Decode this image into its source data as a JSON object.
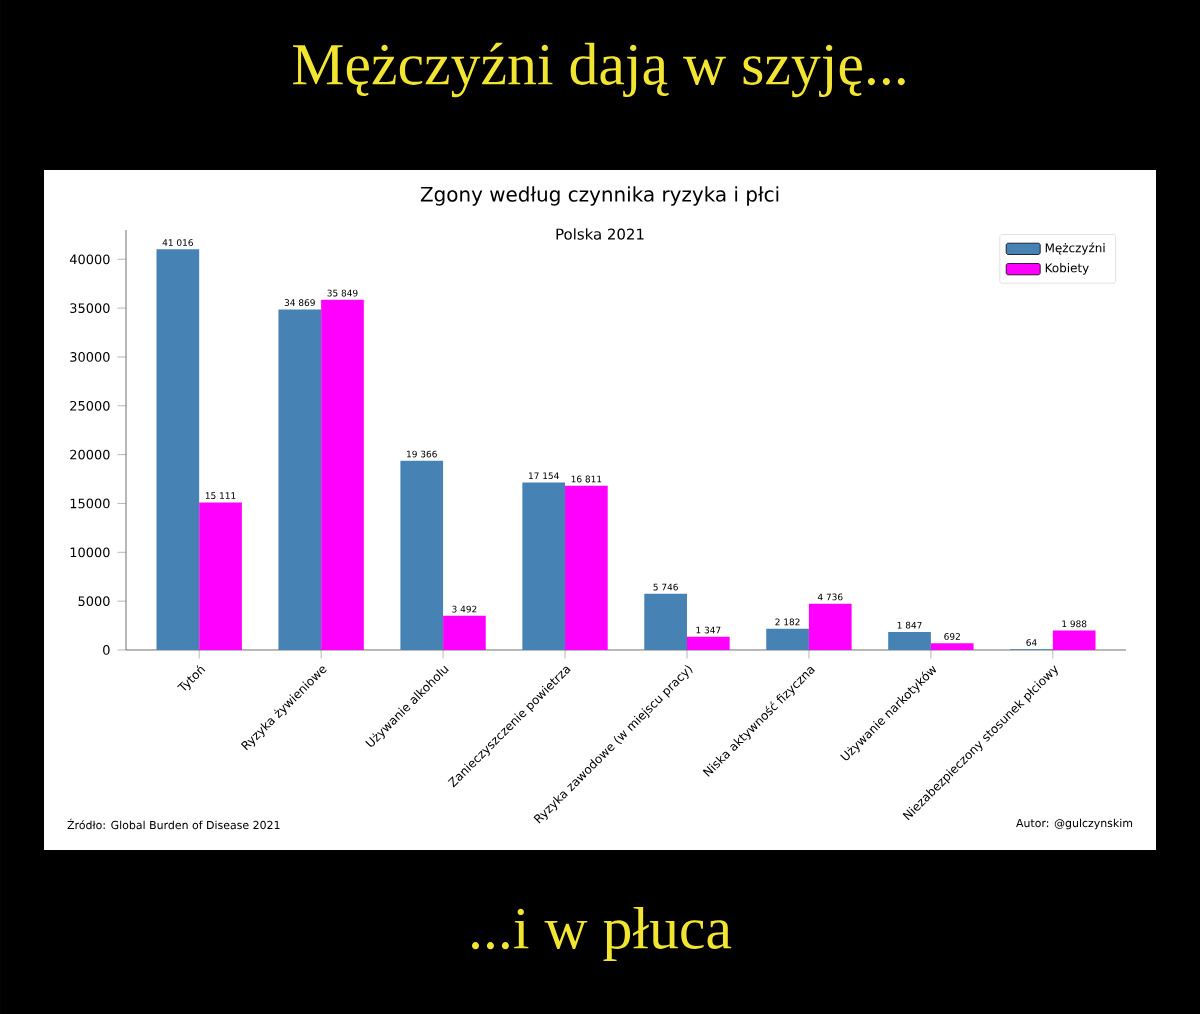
{
  "chart_data": {
    "type": "bar",
    "title": "Zgony według czynnika ryzyka i płci",
    "subtitle": "Polska 2021",
    "annotations": [
      "Mężczyźni dają w szyję...",
      "...i w płuca",
      "Źródło: Global Burden of Disease 2021",
      "Autor: @gulczynskim"
    ],
    "categories": [
      "Tytoń",
      "Ryzyka żywieniowe",
      "Używanie alkoholu",
      "Zanieczyszczenie powietrza",
      "Ryzyka zawodowe (w miejscu pracy)",
      "Niska aktywność fizyczna",
      "Używanie narkotyków",
      "Niezabezpieczony stosunek płciowy"
    ],
    "series": [
      {
        "name": "Mężczyźni",
        "color": "#4682b4",
        "values": [
          41016,
          34869,
          19366,
          17154,
          5746,
          2182,
          1847,
          64
        ],
        "value_labels": [
          "41 016",
          "34 869",
          "19 366",
          "17 154",
          "5 746",
          "2 182",
          "1 847",
          "64"
        ]
      },
      {
        "name": "Kobiety",
        "color": "#ff00ff",
        "values": [
          15111,
          35849,
          3492,
          16811,
          1347,
          4736,
          692,
          1988
        ],
        "value_labels": [
          "15 111",
          "35 849",
          "3 492",
          "16 811",
          "1 347",
          "4 736",
          "692",
          "1 988"
        ]
      }
    ],
    "ylim": [
      0,
      43000
    ],
    "yticks": [
      0,
      5000,
      10000,
      15000,
      20000,
      25000,
      30000,
      35000,
      40000
    ],
    "grid": false,
    "legend": "top right"
  }
}
